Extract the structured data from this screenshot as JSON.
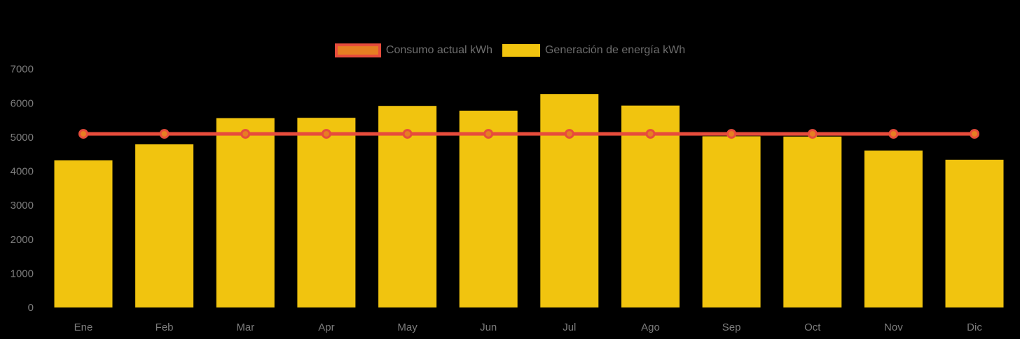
{
  "legend": {
    "items": [
      {
        "label": "Consumo actual kWh",
        "fill": "#e67e22",
        "border": "#e74c3c"
      },
      {
        "label": "Generación de energía kWh",
        "fill": "#f1c40f",
        "border": null
      }
    ]
  },
  "chart_data": {
    "type": "bar",
    "title": "",
    "xlabel": "",
    "ylabel": "",
    "categories": [
      "Ene",
      "Feb",
      "Mar",
      "Apr",
      "May",
      "Jun",
      "Jul",
      "Ago",
      "Sep",
      "Oct",
      "Nov",
      "Dic"
    ],
    "series": [
      {
        "name": "Consumo actual kWh",
        "type": "line",
        "line_color": "#e74c3c",
        "point_fill": "#e67e22",
        "values": [
          5100,
          5100,
          5100,
          5100,
          5100,
          5100,
          5100,
          5100,
          5100,
          5100,
          5100,
          5100
        ]
      },
      {
        "name": "Generación de energía kWh",
        "type": "bar",
        "bar_color": "#f1c40f",
        "values": [
          4320,
          4790,
          5560,
          5570,
          5920,
          5780,
          6270,
          5930,
          5030,
          5020,
          4610,
          4340
        ]
      }
    ],
    "ylim": [
      0,
      7000
    ],
    "yticks": [
      0,
      1000,
      2000,
      3000,
      4000,
      5000,
      6000,
      7000
    ],
    "grid": false,
    "legend_position": "top",
    "background_color": "#000000",
    "tick_label_color": "#7d7d7d"
  }
}
